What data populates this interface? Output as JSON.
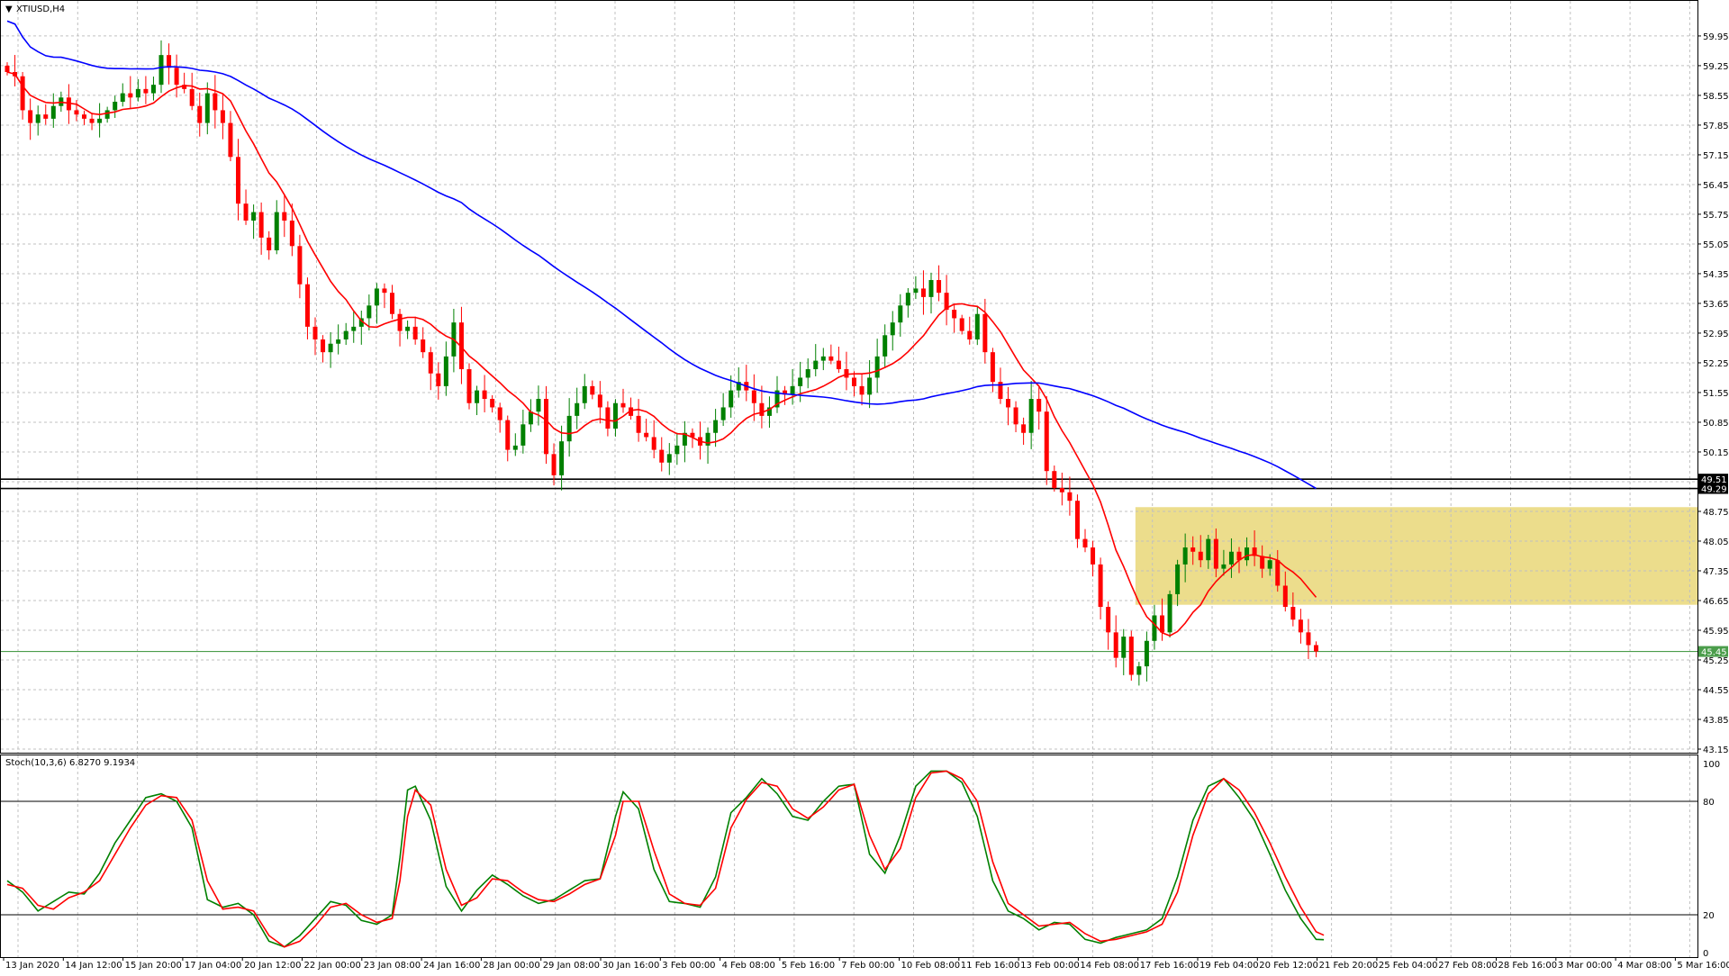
{
  "colors": {
    "background": "#ffffff",
    "bull_candle": "#008000",
    "bear_candle": "#ff0000",
    "ma_fast": "#ff0000",
    "ma_slow": "#0000ff",
    "stoch_main": "#008000",
    "stoch_signal": "#ff0000",
    "grid": "#c0c0c0",
    "highlight_zone": "#e6d266",
    "support_line": "#4b9d4b",
    "resistance_line": "#000000"
  },
  "icons": {
    "symbol_dropdown": "triangle-down-icon"
  },
  "chart_data": [
    {
      "type": "candlestick",
      "title": "XTIUSD,H4",
      "ylim": [
        43.15,
        60.5
      ],
      "y_ticks": [
        "59.95",
        "59.25",
        "58.55",
        "57.85",
        "57.15",
        "56.45",
        "55.75",
        "55.05",
        "54.35",
        "53.65",
        "52.95",
        "52.25",
        "51.55",
        "50.85",
        "50.15",
        "49.45",
        "48.75",
        "48.05",
        "47.35",
        "46.65",
        "45.95",
        "45.25",
        "44.55",
        "43.85",
        "43.15"
      ],
      "x_labels": [
        "13 Jan 2020",
        "14 Jan 12:00",
        "15 Jan 20:00",
        "17 Jan 04:00",
        "20 Jan 12:00",
        "22 Jan 00:00",
        "23 Jan 08:00",
        "24 Jan 16:00",
        "28 Jan 00:00",
        "29 Jan 08:00",
        "30 Jan 16:00",
        "3 Feb 00:00",
        "4 Feb 08:00",
        "5 Feb 16:00",
        "7 Feb 00:00",
        "10 Feb 08:00",
        "11 Feb 16:00",
        "13 Feb 00:00",
        "14 Feb 08:00",
        "17 Feb 16:00",
        "19 Feb 04:00",
        "20 Feb 12:00",
        "21 Feb 20:00",
        "25 Feb 04:00",
        "27 Feb 08:00",
        "28 Feb 16:00",
        "3 Mar 00:00",
        "4 Mar 08:00",
        "5 Mar 16:00"
      ],
      "close": [
        59.1,
        59.0,
        58.2,
        57.9,
        58.1,
        58.0,
        58.3,
        58.5,
        58.2,
        58.1,
        58.0,
        57.9,
        58.0,
        58.2,
        58.4,
        58.6,
        58.5,
        58.7,
        58.6,
        58.8,
        59.5,
        59.2,
        58.8,
        58.7,
        58.3,
        57.9,
        58.6,
        58.2,
        57.9,
        57.1,
        56.0,
        55.6,
        55.8,
        55.2,
        54.9,
        55.8,
        55.6,
        55.0,
        54.1,
        53.1,
        52.8,
        52.5,
        52.7,
        52.8,
        53.0,
        53.1,
        53.3,
        53.6,
        54.0,
        53.9,
        53.4,
        53.0,
        53.1,
        52.8,
        52.5,
        52.0,
        51.7,
        52.4,
        53.2,
        52.1,
        51.3,
        51.6,
        51.4,
        51.2,
        50.9,
        50.2,
        50.3,
        50.8,
        51.1,
        51.4,
        50.1,
        49.6,
        50.4,
        51.0,
        51.3,
        51.7,
        51.5,
        51.2,
        50.7,
        51.3,
        51.2,
        51.0,
        50.6,
        50.5,
        50.2,
        49.9,
        50.1,
        50.3,
        50.6,
        50.5,
        50.3,
        50.6,
        50.9,
        51.2,
        51.6,
        51.8,
        51.6,
        51.3,
        51.0,
        51.2,
        51.6,
        51.5,
        51.7,
        51.9,
        52.1,
        52.3,
        52.4,
        52.3,
        52.1,
        51.9,
        51.7,
        51.5,
        51.9,
        52.4,
        52.9,
        53.2,
        53.6,
        53.9,
        54.0,
        53.8,
        54.2,
        53.9,
        53.5,
        53.3,
        53.0,
        52.8,
        53.4,
        52.5,
        51.8,
        51.4,
        51.2,
        50.8,
        50.6,
        51.4,
        51.1,
        49.7,
        49.3,
        49.2,
        49.0,
        48.1,
        47.9,
        47.5,
        46.5,
        45.9,
        45.3,
        45.8,
        44.9,
        45.1,
        45.7,
        46.3,
        45.9,
        46.8,
        47.5,
        47.9,
        47.8,
        47.6,
        48.1,
        47.4,
        47.5,
        47.8,
        47.6,
        47.9,
        47.7,
        47.4,
        47.6,
        47.0,
        46.5,
        46.2,
        45.9,
        45.6,
        45.45
      ],
      "ma_fast_label": "",
      "ma_slow_label": "",
      "horizontal_lines": [
        {
          "value": 49.51,
          "label": "49.51",
          "style": "resistance"
        },
        {
          "value": 49.29,
          "label": "49.29",
          "style": "resistance"
        },
        {
          "value": 45.45,
          "label": "45.45",
          "style": "support"
        }
      ],
      "highlight_zone": {
        "from_index": 147,
        "to_index": 176,
        "y_low": 46.55,
        "y_high": 48.85
      }
    },
    {
      "type": "line",
      "title": "Stoch(10,3,6) 6.8270 9.1934",
      "ylim": [
        0,
        100
      ],
      "y_ticks": [
        "100",
        "80",
        "20",
        "0"
      ],
      "levels": [
        80,
        20
      ],
      "anchors_main": [
        [
          0,
          38
        ],
        [
          2,
          32
        ],
        [
          4,
          22
        ],
        [
          6,
          27
        ],
        [
          8,
          32
        ],
        [
          10,
          31
        ],
        [
          12,
          42
        ],
        [
          14,
          58
        ],
        [
          16,
          70
        ],
        [
          18,
          82
        ],
        [
          20,
          84
        ],
        [
          22,
          80
        ],
        [
          24,
          66
        ],
        [
          26,
          28
        ],
        [
          28,
          24
        ],
        [
          30,
          26
        ],
        [
          32,
          20
        ],
        [
          34,
          6
        ],
        [
          36,
          3
        ],
        [
          38,
          9
        ],
        [
          40,
          18
        ],
        [
          42,
          27
        ],
        [
          44,
          25
        ],
        [
          46,
          17
        ],
        [
          48,
          15
        ],
        [
          50,
          20
        ],
        [
          51,
          50
        ],
        [
          52,
          86
        ],
        [
          53,
          88
        ],
        [
          55,
          70
        ],
        [
          57,
          35
        ],
        [
          59,
          22
        ],
        [
          61,
          33
        ],
        [
          63,
          41
        ],
        [
          65,
          36
        ],
        [
          67,
          30
        ],
        [
          69,
          26
        ],
        [
          71,
          28
        ],
        [
          73,
          33
        ],
        [
          75,
          38
        ],
        [
          77,
          39
        ],
        [
          79,
          72
        ],
        [
          80,
          85
        ],
        [
          82,
          76
        ],
        [
          84,
          44
        ],
        [
          86,
          27
        ],
        [
          88,
          26
        ],
        [
          90,
          24
        ],
        [
          92,
          40
        ],
        [
          94,
          74
        ],
        [
          96,
          82
        ],
        [
          98,
          92
        ],
        [
          100,
          84
        ],
        [
          102,
          72
        ],
        [
          104,
          70
        ],
        [
          106,
          80
        ],
        [
          108,
          88
        ],
        [
          110,
          89
        ],
        [
          112,
          52
        ],
        [
          114,
          42
        ],
        [
          116,
          62
        ],
        [
          118,
          88
        ],
        [
          120,
          96
        ],
        [
          122,
          96
        ],
        [
          124,
          90
        ],
        [
          126,
          72
        ],
        [
          128,
          38
        ],
        [
          130,
          22
        ],
        [
          132,
          18
        ],
        [
          134,
          12
        ],
        [
          136,
          16
        ],
        [
          138,
          15
        ],
        [
          140,
          7
        ],
        [
          142,
          5
        ],
        [
          144,
          8
        ],
        [
          146,
          10
        ],
        [
          148,
          12
        ],
        [
          150,
          18
        ],
        [
          152,
          40
        ],
        [
          154,
          70
        ],
        [
          156,
          88
        ],
        [
          158,
          92
        ],
        [
          160,
          82
        ],
        [
          162,
          70
        ],
        [
          164,
          52
        ],
        [
          166,
          33
        ],
        [
          168,
          18
        ],
        [
          170,
          7
        ],
        [
          171,
          6.83
        ]
      ],
      "anchors_signal": [
        [
          0,
          36
        ],
        [
          2,
          34
        ],
        [
          4,
          25
        ],
        [
          6,
          23
        ],
        [
          8,
          29
        ],
        [
          10,
          32
        ],
        [
          12,
          38
        ],
        [
          14,
          52
        ],
        [
          16,
          66
        ],
        [
          18,
          78
        ],
        [
          20,
          83
        ],
        [
          22,
          82
        ],
        [
          24,
          70
        ],
        [
          26,
          38
        ],
        [
          28,
          23
        ],
        [
          30,
          24
        ],
        [
          32,
          22
        ],
        [
          34,
          9
        ],
        [
          36,
          3
        ],
        [
          38,
          6
        ],
        [
          40,
          14
        ],
        [
          42,
          24
        ],
        [
          44,
          26
        ],
        [
          46,
          20
        ],
        [
          48,
          16
        ],
        [
          50,
          18
        ],
        [
          51,
          38
        ],
        [
          52,
          72
        ],
        [
          53,
          86
        ],
        [
          55,
          78
        ],
        [
          57,
          44
        ],
        [
          59,
          25
        ],
        [
          61,
          29
        ],
        [
          63,
          39
        ],
        [
          65,
          38
        ],
        [
          67,
          32
        ],
        [
          69,
          28
        ],
        [
          71,
          27
        ],
        [
          73,
          31
        ],
        [
          75,
          36
        ],
        [
          77,
          39
        ],
        [
          79,
          62
        ],
        [
          80,
          80
        ],
        [
          82,
          80
        ],
        [
          84,
          54
        ],
        [
          86,
          31
        ],
        [
          88,
          26
        ],
        [
          90,
          25
        ],
        [
          92,
          34
        ],
        [
          94,
          66
        ],
        [
          96,
          81
        ],
        [
          98,
          90
        ],
        [
          100,
          88
        ],
        [
          102,
          76
        ],
        [
          104,
          71
        ],
        [
          106,
          77
        ],
        [
          108,
          86
        ],
        [
          110,
          89
        ],
        [
          112,
          62
        ],
        [
          114,
          44
        ],
        [
          116,
          55
        ],
        [
          118,
          82
        ],
        [
          120,
          95
        ],
        [
          122,
          96
        ],
        [
          124,
          92
        ],
        [
          126,
          80
        ],
        [
          128,
          48
        ],
        [
          130,
          26
        ],
        [
          132,
          20
        ],
        [
          134,
          14
        ],
        [
          136,
          15
        ],
        [
          138,
          16
        ],
        [
          140,
          10
        ],
        [
          142,
          6
        ],
        [
          144,
          7
        ],
        [
          146,
          9
        ],
        [
          148,
          11
        ],
        [
          150,
          15
        ],
        [
          152,
          32
        ],
        [
          154,
          62
        ],
        [
          156,
          84
        ],
        [
          158,
          92
        ],
        [
          160,
          86
        ],
        [
          162,
          74
        ],
        [
          164,
          58
        ],
        [
          166,
          40
        ],
        [
          168,
          24
        ],
        [
          170,
          11
        ],
        [
          171,
          9.19
        ]
      ]
    }
  ]
}
